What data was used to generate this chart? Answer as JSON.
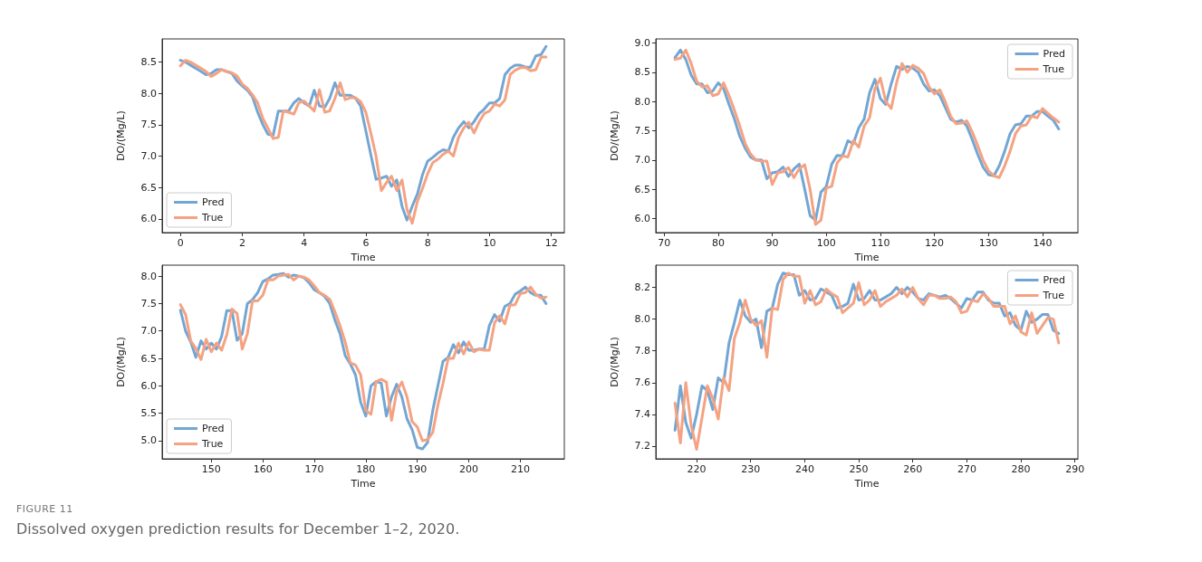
{
  "chart_data": [
    {
      "type": "line",
      "xlabel": "Time",
      "ylabel": "DO/(Mg/L)",
      "legend": "bottom left",
      "line_style": "solid",
      "xlim": [
        -0.59,
        12.42
      ],
      "ylim": [
        5.78,
        8.87
      ],
      "xticks": [
        0,
        2,
        4,
        6,
        8,
        10,
        12
      ],
      "yticks": [
        {
          "value": 6,
          "label": "6.0"
        },
        6.5,
        {
          "value": 7,
          "label": "7.0"
        },
        7.5,
        {
          "value": 8,
          "label": "8.0"
        },
        8.5
      ],
      "x": [
        0,
        0.17,
        0.33,
        0.5,
        0.67,
        0.83,
        1,
        1.17,
        1.33,
        1.5,
        1.67,
        1.83,
        2,
        2.17,
        2.33,
        2.5,
        2.67,
        2.83,
        3,
        3.17,
        3.33,
        3.5,
        3.67,
        3.83,
        4,
        4.17,
        4.33,
        4.5,
        4.67,
        4.83,
        5,
        5.17,
        5.33,
        5.5,
        5.67,
        5.83,
        6,
        6.17,
        6.33,
        6.5,
        6.67,
        6.83,
        7,
        7.17,
        7.33,
        7.5,
        7.67,
        7.83,
        8,
        8.17,
        8.33,
        8.5,
        8.67,
        8.83,
        9,
        9.17,
        9.33,
        9.5,
        9.67,
        9.83,
        10,
        10.17,
        10.33,
        10.5,
        10.67,
        10.83,
        11,
        11.17,
        11.33,
        11.5,
        11.67,
        11.83
      ],
      "series": [
        {
          "name": "Pred",
          "color": "#73a6d3",
          "values": [
            8.53,
            8.5,
            8.45,
            8.4,
            8.35,
            8.3,
            8.32,
            8.38,
            8.38,
            8.35,
            8.32,
            8.2,
            8.12,
            8.05,
            7.95,
            7.7,
            7.5,
            7.35,
            7.33,
            7.72,
            7.72,
            7.72,
            7.85,
            7.92,
            7.85,
            7.8,
            8.05,
            7.8,
            7.78,
            7.92,
            8.17,
            7.97,
            7.97,
            7.97,
            7.92,
            7.8,
            7.4,
            7.0,
            6.63,
            6.65,
            6.68,
            6.52,
            6.62,
            6.2,
            5.98,
            6.2,
            6.4,
            6.7,
            6.92,
            6.98,
            7.05,
            7.1,
            7.08,
            7.3,
            7.45,
            7.55,
            7.45,
            7.55,
            7.68,
            7.75,
            7.85,
            7.85,
            7.92,
            8.3,
            8.4,
            8.45,
            8.45,
            8.42,
            8.42,
            8.6,
            8.62,
            8.75
          ]
        },
        {
          "name": "True",
          "color": "#f5a282",
          "values": [
            8.44,
            8.53,
            8.5,
            8.45,
            8.4,
            8.35,
            8.27,
            8.32,
            8.38,
            8.35,
            8.33,
            8.28,
            8.15,
            8.08,
            7.98,
            7.85,
            7.6,
            7.45,
            7.28,
            7.3,
            7.72,
            7.7,
            7.67,
            7.85,
            7.88,
            7.8,
            7.72,
            8.06,
            7.7,
            7.72,
            7.92,
            8.17,
            7.9,
            7.93,
            7.93,
            7.87,
            7.7,
            7.35,
            7.0,
            6.45,
            6.58,
            6.68,
            6.45,
            6.62,
            6.15,
            5.93,
            6.28,
            6.48,
            6.72,
            6.9,
            6.95,
            7.03,
            7.08,
            7.0,
            7.3,
            7.45,
            7.54,
            7.37,
            7.55,
            7.68,
            7.72,
            7.83,
            7.8,
            7.9,
            8.3,
            8.37,
            8.41,
            8.41,
            8.36,
            8.38,
            8.58,
            8.58
          ]
        }
      ],
      "annotations": [
        "FIGURE 11",
        "Dissolved oxygen prediction results for December 1–2, 2020."
      ]
    },
    {
      "type": "line",
      "xlabel": "Time",
      "ylabel": "DO/(Mg/L)",
      "legend": "top right",
      "line_style": "solid",
      "xlim": [
        68.45,
        146.55
      ],
      "ylim": [
        5.76,
        9.07
      ],
      "xticks": [
        70,
        80,
        90,
        100,
        110,
        120,
        130,
        140
      ],
      "yticks": [
        {
          "value": 6,
          "label": "6.0"
        },
        6.5,
        {
          "value": 7,
          "label": "7.0"
        },
        7.5,
        {
          "value": 8,
          "label": "8.0"
        },
        8.5,
        {
          "value": 9,
          "label": "9.0"
        }
      ],
      "x": [
        72,
        73,
        74,
        75,
        76,
        77,
        78,
        79,
        80,
        81,
        82,
        83,
        84,
        85,
        86,
        87,
        88,
        89,
        90,
        91,
        92,
        93,
        94,
        95,
        96,
        97,
        98,
        99,
        100,
        101,
        102,
        103,
        104,
        105,
        106,
        107,
        108,
        109,
        110,
        111,
        112,
        113,
        114,
        115,
        116,
        117,
        118,
        119,
        120,
        121,
        122,
        123,
        124,
        125,
        126,
        127,
        128,
        129,
        130,
        131,
        132,
        133,
        134,
        135,
        136,
        137,
        138,
        139,
        140,
        141,
        142,
        143
      ],
      "series": [
        {
          "name": "Pred",
          "color": "#73a6d3",
          "values": [
            8.75,
            8.88,
            8.72,
            8.45,
            8.3,
            8.3,
            8.15,
            8.18,
            8.32,
            8.22,
            7.95,
            7.7,
            7.4,
            7.2,
            7.05,
            7.0,
            7.0,
            6.68,
            6.78,
            6.8,
            6.88,
            6.72,
            6.85,
            6.93,
            6.5,
            6.05,
            5.97,
            6.45,
            6.55,
            6.93,
            7.08,
            7.07,
            7.33,
            7.28,
            7.55,
            7.7,
            8.15,
            8.38,
            8.05,
            7.95,
            8.3,
            8.6,
            8.55,
            8.6,
            8.57,
            8.5,
            8.3,
            8.18,
            8.2,
            8.1,
            7.9,
            7.7,
            7.65,
            7.68,
            7.58,
            7.35,
            7.1,
            6.88,
            6.75,
            6.73,
            6.9,
            7.15,
            7.45,
            7.6,
            7.62,
            7.75,
            7.75,
            7.83,
            7.83,
            7.75,
            7.68,
            7.53
          ]
        },
        {
          "name": "True",
          "color": "#f5a282",
          "values": [
            8.72,
            8.74,
            8.88,
            8.65,
            8.35,
            8.25,
            8.27,
            8.1,
            8.13,
            8.32,
            8.1,
            7.85,
            7.58,
            7.28,
            7.1,
            7.0,
            6.98,
            6.98,
            6.58,
            6.78,
            6.8,
            6.87,
            6.7,
            6.85,
            6.92,
            6.5,
            5.9,
            5.97,
            6.52,
            6.55,
            6.95,
            7.07,
            7.05,
            7.33,
            7.22,
            7.58,
            7.72,
            8.22,
            8.4,
            8.0,
            7.88,
            8.32,
            8.65,
            8.5,
            8.62,
            8.57,
            8.48,
            8.25,
            8.13,
            8.2,
            8.0,
            7.75,
            7.62,
            7.63,
            7.67,
            7.48,
            7.25,
            7.0,
            6.82,
            6.73,
            6.7,
            6.9,
            7.15,
            7.45,
            7.58,
            7.6,
            7.75,
            7.72,
            7.88,
            7.8,
            7.72,
            7.65
          ]
        }
      ]
    },
    {
      "type": "line",
      "xlabel": "Time",
      "ylabel": "DO/(Mg/L)",
      "legend": "bottom left",
      "line_style": "solid",
      "xlim": [
        140.45,
        218.55
      ],
      "ylim": [
        4.67,
        8.2
      ],
      "xticks": [
        150,
        160,
        170,
        180,
        190,
        200,
        210
      ],
      "yticks": [
        {
          "value": 5,
          "label": "5.0"
        },
        5.5,
        {
          "value": 6,
          "label": "6.0"
        },
        6.5,
        {
          "value": 7,
          "label": "7.0"
        },
        7.5,
        {
          "value": 8,
          "label": "8.0"
        }
      ],
      "x": [
        144,
        145,
        146,
        147,
        148,
        149,
        150,
        151,
        152,
        153,
        154,
        155,
        156,
        157,
        158,
        159,
        160,
        161,
        162,
        163,
        164,
        165,
        166,
        167,
        168,
        169,
        170,
        171,
        172,
        173,
        174,
        175,
        176,
        177,
        178,
        179,
        180,
        181,
        182,
        183,
        184,
        185,
        186,
        187,
        188,
        189,
        190,
        191,
        192,
        193,
        194,
        195,
        196,
        197,
        198,
        199,
        200,
        201,
        202,
        203,
        204,
        205,
        206,
        207,
        208,
        209,
        210,
        211,
        212,
        213,
        214,
        215
      ],
      "series": [
        {
          "name": "Pred",
          "color": "#73a6d3",
          "values": [
            7.38,
            7.0,
            6.8,
            6.52,
            6.82,
            6.67,
            6.78,
            6.67,
            6.9,
            7.37,
            7.37,
            6.83,
            6.95,
            7.5,
            7.57,
            7.7,
            7.9,
            7.95,
            8.02,
            8.03,
            8.05,
            7.98,
            8.02,
            8.0,
            7.97,
            7.88,
            7.75,
            7.7,
            7.63,
            7.5,
            7.2,
            6.95,
            6.55,
            6.4,
            6.2,
            5.7,
            5.45,
            6.0,
            6.08,
            6.05,
            5.45,
            5.8,
            6.03,
            5.8,
            5.4,
            5.2,
            4.88,
            4.85,
            4.97,
            5.55,
            6.0,
            6.45,
            6.52,
            6.75,
            6.6,
            6.8,
            6.65,
            6.65,
            6.67,
            6.67,
            7.1,
            7.3,
            7.18,
            7.45,
            7.5,
            7.67,
            7.73,
            7.8,
            7.7,
            7.65,
            7.65,
            7.5
          ]
        },
        {
          "name": "True",
          "color": "#f5a282",
          "values": [
            7.48,
            7.3,
            6.82,
            6.68,
            6.48,
            6.85,
            6.62,
            6.78,
            6.65,
            6.93,
            7.4,
            7.32,
            6.67,
            6.95,
            7.55,
            7.55,
            7.65,
            7.93,
            7.93,
            8.0,
            8.02,
            8.03,
            7.93,
            8.0,
            7.98,
            7.93,
            7.82,
            7.7,
            7.65,
            7.58,
            7.35,
            7.1,
            6.8,
            6.42,
            6.38,
            6.2,
            5.55,
            5.48,
            6.08,
            6.12,
            6.07,
            5.37,
            5.9,
            6.07,
            5.8,
            5.35,
            5.25,
            5.0,
            5.02,
            5.15,
            5.65,
            6.05,
            6.5,
            6.5,
            6.78,
            6.58,
            6.8,
            6.62,
            6.67,
            6.65,
            6.65,
            7.15,
            7.28,
            7.13,
            7.47,
            7.48,
            7.68,
            7.7,
            7.8,
            7.67,
            7.6,
            7.62
          ]
        }
      ]
    },
    {
      "type": "line",
      "xlabel": "Time",
      "ylabel": "DO/(Mg/L)",
      "legend": "top right",
      "line_style": "solid",
      "xlim": [
        212.45,
        290.55
      ],
      "ylim": [
        7.12,
        8.34
      ],
      "xticks": [
        220,
        230,
        240,
        250,
        260,
        270,
        280,
        290
      ],
      "yticks": [
        7.2,
        7.4,
        7.6,
        7.8,
        {
          "value": 8,
          "label": "8.0"
        },
        8.2
      ],
      "x": [
        216,
        217,
        218,
        219,
        220,
        221,
        222,
        223,
        224,
        225,
        226,
        227,
        228,
        229,
        230,
        231,
        232,
        233,
        234,
        235,
        236,
        237,
        238,
        239,
        240,
        241,
        242,
        243,
        244,
        245,
        246,
        247,
        248,
        249,
        250,
        251,
        252,
        253,
        254,
        255,
        256,
        257,
        258,
        259,
        260,
        261,
        262,
        263,
        264,
        265,
        266,
        267,
        268,
        269,
        270,
        271,
        272,
        273,
        274,
        275,
        276,
        277,
        278,
        279,
        280,
        281,
        282,
        283,
        284,
        285,
        286,
        287
      ],
      "series": [
        {
          "name": "Pred",
          "color": "#73a6d3",
          "values": [
            7.3,
            7.58,
            7.35,
            7.25,
            7.4,
            7.58,
            7.55,
            7.43,
            7.63,
            7.6,
            7.85,
            7.98,
            8.12,
            8.02,
            7.98,
            8.0,
            7.82,
            8.05,
            8.07,
            8.22,
            8.29,
            8.28,
            8.28,
            8.15,
            8.18,
            8.12,
            8.13,
            8.19,
            8.17,
            8.15,
            8.07,
            8.08,
            8.1,
            8.22,
            8.12,
            8.13,
            8.18,
            8.12,
            8.12,
            8.14,
            8.16,
            8.2,
            8.16,
            8.2,
            8.17,
            8.13,
            8.12,
            8.16,
            8.15,
            8.14,
            8.15,
            8.13,
            8.1,
            8.07,
            8.13,
            8.12,
            8.17,
            8.17,
            8.12,
            8.1,
            8.1,
            8.02,
            8.04,
            7.96,
            7.93,
            8.05,
            7.98,
            8.0,
            8.03,
            8.03,
            7.93,
            7.91
          ]
        },
        {
          "name": "True",
          "color": "#f5a282",
          "values": [
            7.47,
            7.22,
            7.6,
            7.33,
            7.18,
            7.38,
            7.58,
            7.5,
            7.37,
            7.63,
            7.55,
            7.88,
            7.98,
            8.12,
            8.0,
            7.96,
            7.99,
            7.76,
            8.07,
            8.06,
            8.25,
            8.29,
            8.27,
            8.27,
            8.1,
            8.18,
            8.09,
            8.11,
            8.19,
            8.16,
            8.14,
            8.04,
            8.07,
            8.1,
            8.23,
            8.09,
            8.12,
            8.18,
            8.08,
            8.11,
            8.13,
            8.15,
            8.19,
            8.14,
            8.2,
            8.13,
            8.09,
            8.15,
            8.15,
            8.13,
            8.13,
            8.14,
            8.11,
            8.04,
            8.05,
            8.12,
            8.11,
            8.16,
            8.13,
            8.08,
            8.08,
            8.08,
            7.97,
            8.02,
            7.92,
            7.9,
            8.04,
            7.91,
            7.96,
            8.01,
            8.0,
            7.85
          ]
        }
      ]
    }
  ]
}
